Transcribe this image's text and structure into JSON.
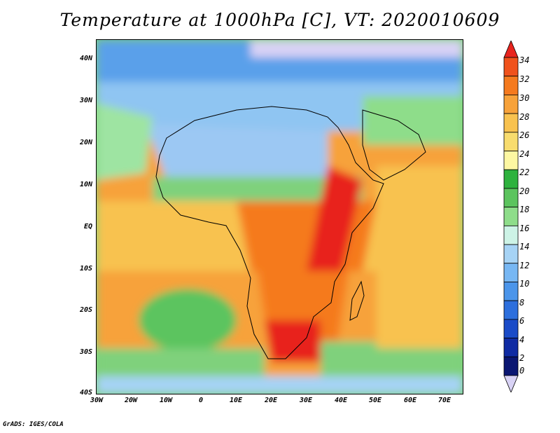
{
  "title": "Temperature at 1000hPa [C], VT: 2020010609",
  "credit": "GrADS: IGES/COLA",
  "map": {
    "lat_labels": [
      "40N",
      "30N",
      "20N",
      "10N",
      "EQ",
      "10S",
      "20S",
      "30S",
      "40S"
    ],
    "lon_labels": [
      "30W",
      "20W",
      "10W",
      "0",
      "10E",
      "20E",
      "30E",
      "40E",
      "50E",
      "60E",
      "70E"
    ],
    "region": "Africa",
    "projection": "lat-lon"
  },
  "colorbar": {
    "labels": [
      "34",
      "32",
      "30",
      "28",
      "26",
      "24",
      "22",
      "20",
      "18",
      "16",
      "14",
      "12",
      "10",
      "8",
      "6",
      "4",
      "2",
      "0"
    ],
    "colors": [
      "#e8241e",
      "#f0521c",
      "#f57a1e",
      "#f7a23a",
      "#f8c24f",
      "#f8dc6e",
      "#fdf7a2",
      "#2eb23e",
      "#5cc45e",
      "#8edd8a",
      "#cdf3e6",
      "#a6d3f5",
      "#77b7f3",
      "#4b95ea",
      "#2d6fdd",
      "#1a4bc8",
      "#0f2ba3",
      "#0a1672",
      "#d8d2f5"
    ]
  }
}
